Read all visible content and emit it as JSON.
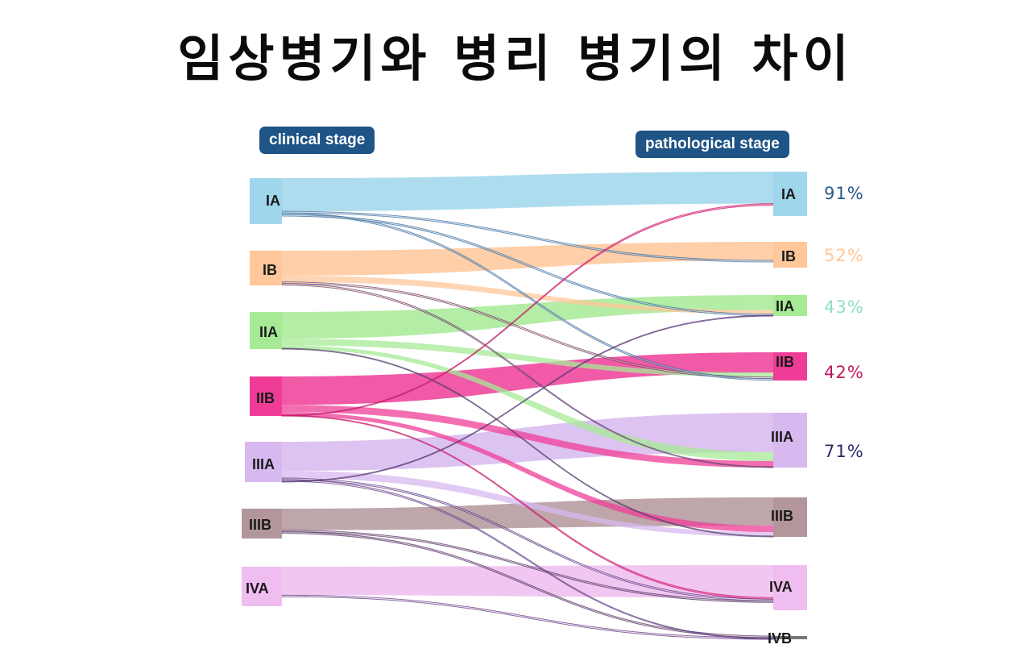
{
  "title": "임상병기와 병리 병기의 차이",
  "headers": {
    "clinical": "clinical stage",
    "pathological": "pathological stage"
  },
  "colors": {
    "IA": "#9fd6ec",
    "IB": "#ffc79a",
    "IIA": "#a6ea96",
    "IIB": "#ef3d97",
    "IIIA": "#d7b8ef",
    "IIIB": "#b3969b",
    "IVA": "#efbdf0",
    "IVB": "#777777"
  },
  "clinical_stages": [
    {
      "label": "IA",
      "color": "#9fd6ec"
    },
    {
      "label": "IB",
      "color": "#ffc79a"
    },
    {
      "label": "IIA",
      "color": "#a6ea96"
    },
    {
      "label": "IIB",
      "color": "#ef3d97"
    },
    {
      "label": "IIIA",
      "color": "#d7b8ef"
    },
    {
      "label": "IIIB",
      "color": "#b3969b"
    },
    {
      "label": "IVA",
      "color": "#efbdf0"
    }
  ],
  "pathological_stages": [
    {
      "label": "IA",
      "color": "#9fd6ec"
    },
    {
      "label": "IB",
      "color": "#ffc79a"
    },
    {
      "label": "IIA",
      "color": "#a6ea96"
    },
    {
      "label": "IIB",
      "color": "#ef3d97"
    },
    {
      "label": "IIIA",
      "color": "#d7b8ef"
    },
    {
      "label": "IIIB",
      "color": "#b3969b"
    },
    {
      "label": "IVA",
      "color": "#efbdf0"
    },
    {
      "label": "IVB",
      "color": "#777777"
    }
  ],
  "concordance": [
    {
      "stage": "IA",
      "value": "91%",
      "color": "#2a5a8a"
    },
    {
      "stage": "IB",
      "value": "52%",
      "color": "#ffc79a"
    },
    {
      "stage": "IIA",
      "value": "43%",
      "color": "#8fe0c0"
    },
    {
      "stage": "IIB",
      "value": "42%",
      "color": "#c2185b"
    },
    {
      "stage": "IIIA",
      "value": "71%",
      "color": "#2a2a6a"
    }
  ],
  "flows": [
    {
      "from": "IA",
      "to": "IA",
      "kind": "main"
    },
    {
      "from": "IB",
      "to": "IB",
      "kind": "main"
    },
    {
      "from": "IIA",
      "to": "IIA",
      "kind": "main"
    },
    {
      "from": "IIB",
      "to": "IIB",
      "kind": "main"
    },
    {
      "from": "IIIA",
      "to": "IIIA",
      "kind": "main"
    },
    {
      "from": "IIIB",
      "to": "IIIB",
      "kind": "main"
    },
    {
      "from": "IVA",
      "to": "IVA",
      "kind": "main"
    },
    {
      "from": "IIA",
      "to": "IIB",
      "kind": "mid"
    },
    {
      "from": "IIA",
      "to": "IIIA",
      "kind": "mid"
    },
    {
      "from": "IIB",
      "to": "IIIA",
      "kind": "mid"
    },
    {
      "from": "IIB",
      "to": "IIIB",
      "kind": "mid"
    },
    {
      "from": "IIIA",
      "to": "IIIB",
      "kind": "mid"
    },
    {
      "from": "IB",
      "to": "IIA",
      "kind": "mid"
    },
    {
      "from": "IB",
      "to": "IIB",
      "kind": "thin"
    },
    {
      "from": "IB",
      "to": "IIIA",
      "kind": "thin"
    },
    {
      "from": "IA",
      "to": "IB",
      "kind": "thin"
    },
    {
      "from": "IA",
      "to": "IIB",
      "kind": "thin"
    },
    {
      "from": "IA",
      "to": "IIA",
      "kind": "thin"
    },
    {
      "from": "IIA",
      "to": "IIIB",
      "kind": "thin"
    },
    {
      "from": "IIB",
      "to": "IVA",
      "kind": "thin"
    },
    {
      "from": "IIIA",
      "to": "IVA",
      "kind": "thin"
    },
    {
      "from": "IIIB",
      "to": "IVA",
      "kind": "thin"
    },
    {
      "from": "IIIB",
      "to": "IVB",
      "kind": "thin"
    },
    {
      "from": "IVA",
      "to": "IVB",
      "kind": "thin"
    },
    {
      "from": "IIIA",
      "to": "IVB",
      "kind": "thin"
    },
    {
      "from": "IIB",
      "to": "IA",
      "kind": "thin"
    },
    {
      "from": "IIIA",
      "to": "IIA",
      "kind": "thin"
    }
  ]
}
